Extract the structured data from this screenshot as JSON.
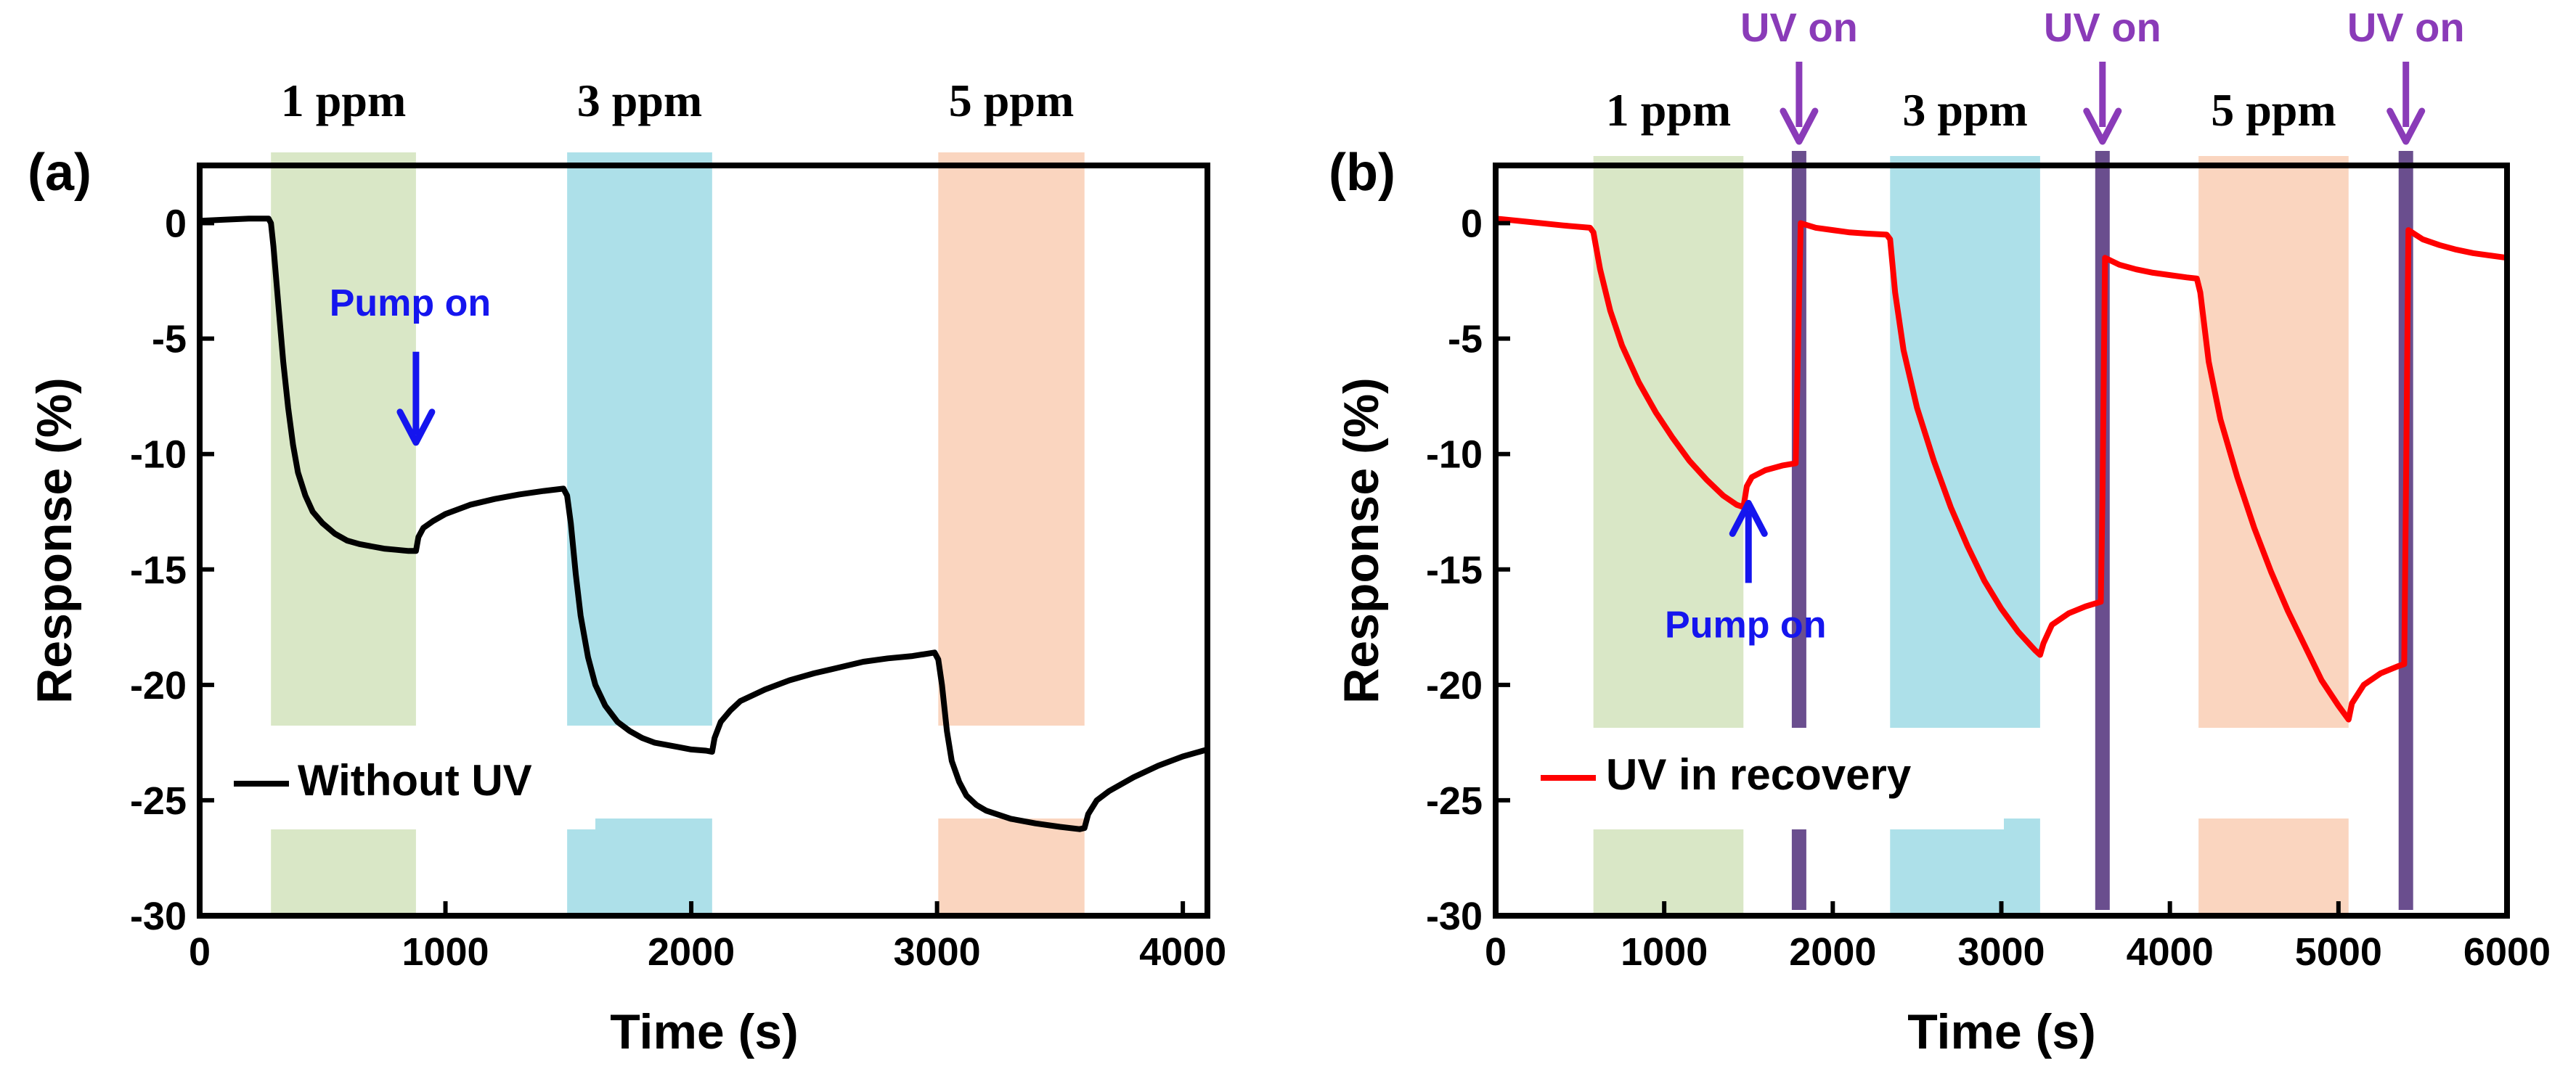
{
  "colors": {
    "green": "#d9e7c6",
    "blue": "#ade0e9",
    "orange": "#fad5bf",
    "uv_bar": "#6a4e8e",
    "uv_text": "#8a3bb8",
    "pump_text": "#1515ee",
    "curve_a": "#000000",
    "curve_b": "#ff0000"
  },
  "chart_data": [
    {
      "type": "line",
      "panel_label": "(a)",
      "xlabel": "Time (s)",
      "ylabel": "Response (%)",
      "xlim": [
        0,
        4100
      ],
      "ylim": [
        -30,
        2.5
      ],
      "xticks": [
        0,
        1000,
        2000,
        3000,
        4000
      ],
      "yticks": [
        0,
        -5,
        -10,
        -15,
        -20,
        -25,
        -30
      ],
      "grid": false,
      "legend": {
        "label": "Without UV",
        "placement": "bottom-left"
      },
      "bands": [
        {
          "label": "1 ppm",
          "x0": 290,
          "x1": 880,
          "color": "green"
        },
        {
          "label": "3 ppm",
          "x0": 1495,
          "x1": 2085,
          "color": "blue"
        },
        {
          "label": "5 ppm",
          "x0": 3005,
          "x1": 3600,
          "color": "orange"
        }
      ],
      "annotations": [
        {
          "text": "Pump on",
          "x": 880,
          "y": -9.5,
          "arrow": "down"
        }
      ],
      "series": [
        {
          "name": "Without UV",
          "color": "curve_a",
          "points": [
            [
              0,
              0.1
            ],
            [
              100,
              0.15
            ],
            [
              200,
              0.2
            ],
            [
              280,
              0.2
            ],
            [
              290,
              0.0
            ],
            [
              300,
              -1.0
            ],
            [
              320,
              -3.5
            ],
            [
              340,
              -6.0
            ],
            [
              360,
              -8.0
            ],
            [
              380,
              -9.6
            ],
            [
              400,
              -10.8
            ],
            [
              430,
              -11.8
            ],
            [
              460,
              -12.5
            ],
            [
              500,
              -13.0
            ],
            [
              550,
              -13.45
            ],
            [
              600,
              -13.75
            ],
            [
              650,
              -13.9
            ],
            [
              700,
              -14.0
            ],
            [
              750,
              -14.1
            ],
            [
              800,
              -14.15
            ],
            [
              850,
              -14.2
            ],
            [
              880,
              -14.2
            ],
            [
              890,
              -13.6
            ],
            [
              910,
              -13.2
            ],
            [
              950,
              -12.9
            ],
            [
              1000,
              -12.6
            ],
            [
              1100,
              -12.2
            ],
            [
              1200,
              -11.95
            ],
            [
              1300,
              -11.75
            ],
            [
              1400,
              -11.6
            ],
            [
              1480,
              -11.5
            ],
            [
              1495,
              -11.8
            ],
            [
              1510,
              -13.0
            ],
            [
              1530,
              -15.2
            ],
            [
              1550,
              -17.0
            ],
            [
              1580,
              -18.8
            ],
            [
              1610,
              -20.0
            ],
            [
              1650,
              -20.9
            ],
            [
              1700,
              -21.6
            ],
            [
              1750,
              -22.0
            ],
            [
              1800,
              -22.3
            ],
            [
              1850,
              -22.5
            ],
            [
              1900,
              -22.6
            ],
            [
              1950,
              -22.7
            ],
            [
              2000,
              -22.8
            ],
            [
              2060,
              -22.85
            ],
            [
              2085,
              -22.9
            ],
            [
              2095,
              -22.3
            ],
            [
              2120,
              -21.6
            ],
            [
              2160,
              -21.1
            ],
            [
              2200,
              -20.7
            ],
            [
              2300,
              -20.2
            ],
            [
              2400,
              -19.8
            ],
            [
              2500,
              -19.5
            ],
            [
              2600,
              -19.25
            ],
            [
              2700,
              -19.0
            ],
            [
              2800,
              -18.85
            ],
            [
              2900,
              -18.75
            ],
            [
              2990,
              -18.6
            ],
            [
              3005,
              -18.9
            ],
            [
              3020,
              -20.0
            ],
            [
              3040,
              -22.0
            ],
            [
              3060,
              -23.3
            ],
            [
              3090,
              -24.2
            ],
            [
              3120,
              -24.8
            ],
            [
              3160,
              -25.2
            ],
            [
              3200,
              -25.45
            ],
            [
              3300,
              -25.8
            ],
            [
              3400,
              -26.0
            ],
            [
              3500,
              -26.15
            ],
            [
              3580,
              -26.25
            ],
            [
              3600,
              -26.2
            ],
            [
              3615,
              -25.6
            ],
            [
              3650,
              -25.0
            ],
            [
              3700,
              -24.6
            ],
            [
              3800,
              -24.0
            ],
            [
              3900,
              -23.5
            ],
            [
              4000,
              -23.1
            ],
            [
              4100,
              -22.8
            ]
          ]
        }
      ]
    },
    {
      "type": "line",
      "panel_label": "(b)",
      "xlabel": "Time (s)",
      "ylabel": "Response (%)",
      "xlim": [
        0,
        6000
      ],
      "ylim": [
        -30,
        2.5
      ],
      "xticks": [
        0,
        1000,
        2000,
        3000,
        4000,
        5000,
        6000
      ],
      "yticks": [
        0,
        -5,
        -10,
        -15,
        -20,
        -25,
        -30
      ],
      "grid": false,
      "legend": {
        "label": "UV in recovery",
        "placement": "bottom-left"
      },
      "bands": [
        {
          "label": "1 ppm",
          "x0": 580,
          "x1": 1470,
          "color": "green"
        },
        {
          "label": "3 ppm",
          "x0": 2340,
          "x1": 3230,
          "color": "blue"
        },
        {
          "label": "5 ppm",
          "x0": 4170,
          "x1": 5060,
          "color": "orange"
        }
      ],
      "uv_markers": [
        {
          "label": "UV on",
          "x": 1800
        },
        {
          "label": "UV on",
          "x": 3600
        },
        {
          "label": "UV on",
          "x": 5400
        }
      ],
      "annotations": [
        {
          "text": "Pump on",
          "x": 1500,
          "y": -11.5,
          "arrow": "up"
        }
      ],
      "series": [
        {
          "name": "UV in recovery",
          "color": "curve_b",
          "points": [
            [
              0,
              0.2
            ],
            [
              200,
              0.05
            ],
            [
              400,
              -0.1
            ],
            [
              560,
              -0.2
            ],
            [
              580,
              -0.4
            ],
            [
              620,
              -2.0
            ],
            [
              680,
              -3.8
            ],
            [
              750,
              -5.3
            ],
            [
              850,
              -6.9
            ],
            [
              950,
              -8.2
            ],
            [
              1050,
              -9.3
            ],
            [
              1150,
              -10.3
            ],
            [
              1250,
              -11.1
            ],
            [
              1350,
              -11.8
            ],
            [
              1430,
              -12.2
            ],
            [
              1470,
              -12.3
            ],
            [
              1490,
              -11.4
            ],
            [
              1520,
              -11.0
            ],
            [
              1600,
              -10.7
            ],
            [
              1700,
              -10.5
            ],
            [
              1780,
              -10.4
            ],
            [
              1795,
              -5.0
            ],
            [
              1810,
              0.0
            ],
            [
              1830,
              -0.05
            ],
            [
              1900,
              -0.2
            ],
            [
              2000,
              -0.3
            ],
            [
              2100,
              -0.4
            ],
            [
              2200,
              -0.45
            ],
            [
              2320,
              -0.5
            ],
            [
              2340,
              -0.7
            ],
            [
              2370,
              -3.0
            ],
            [
              2420,
              -5.5
            ],
            [
              2500,
              -8.0
            ],
            [
              2600,
              -10.3
            ],
            [
              2700,
              -12.3
            ],
            [
              2800,
              -14.0
            ],
            [
              2900,
              -15.5
            ],
            [
              3000,
              -16.7
            ],
            [
              3100,
              -17.7
            ],
            [
              3200,
              -18.5
            ],
            [
              3230,
              -18.7
            ],
            [
              3250,
              -18.2
            ],
            [
              3300,
              -17.4
            ],
            [
              3400,
              -16.9
            ],
            [
              3500,
              -16.6
            ],
            [
              3590,
              -16.4
            ],
            [
              3600,
              -12.0
            ],
            [
              3615,
              -1.5
            ],
            [
              3700,
              -1.8
            ],
            [
              3800,
              -2.0
            ],
            [
              3900,
              -2.15
            ],
            [
              4000,
              -2.25
            ],
            [
              4100,
              -2.35
            ],
            [
              4160,
              -2.4
            ],
            [
              4180,
              -3.0
            ],
            [
              4230,
              -6.0
            ],
            [
              4300,
              -8.5
            ],
            [
              4400,
              -11.0
            ],
            [
              4500,
              -13.2
            ],
            [
              4600,
              -15.1
            ],
            [
              4700,
              -16.8
            ],
            [
              4800,
              -18.3
            ],
            [
              4900,
              -19.8
            ],
            [
              5000,
              -20.9
            ],
            [
              5060,
              -21.5
            ],
            [
              5080,
              -20.8
            ],
            [
              5150,
              -20.0
            ],
            [
              5250,
              -19.5
            ],
            [
              5350,
              -19.2
            ],
            [
              5390,
              -19.1
            ],
            [
              5400,
              -12.0
            ],
            [
              5415,
              -0.3
            ],
            [
              5500,
              -0.7
            ],
            [
              5600,
              -0.95
            ],
            [
              5700,
              -1.15
            ],
            [
              5800,
              -1.3
            ],
            [
              5900,
              -1.4
            ],
            [
              6000,
              -1.5
            ]
          ]
        }
      ]
    }
  ]
}
